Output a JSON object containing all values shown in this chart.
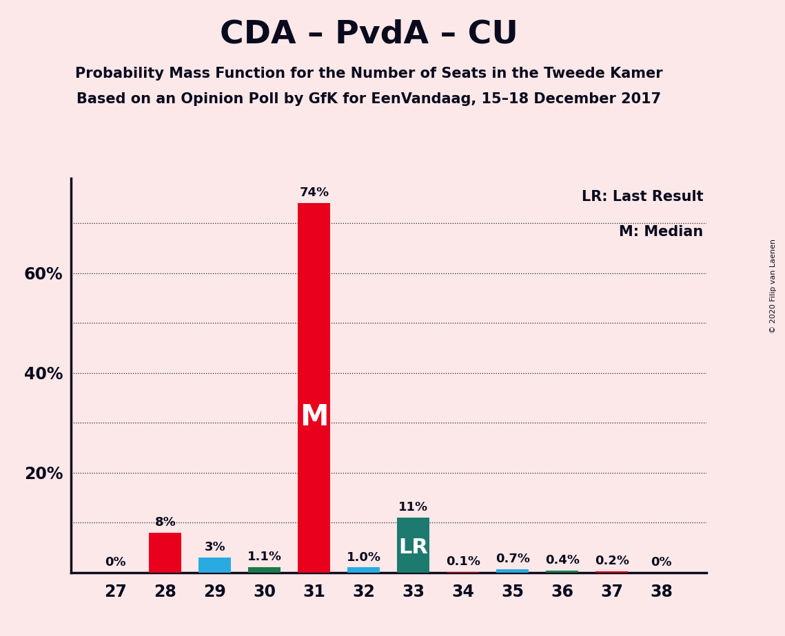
{
  "title": "CDA – PvdA – CU",
  "subtitle1": "Probability Mass Function for the Number of Seats in the Tweede Kamer",
  "subtitle2": "Based on an Opinion Poll by GfK for EenVandaag, 15–18 December 2017",
  "copyright": "© 2020 Filip van Laenen",
  "legend_lr": "LR: Last Result",
  "legend_m": "M: Median",
  "background_color": "#fce8e8",
  "categories": [
    27,
    28,
    29,
    30,
    31,
    32,
    33,
    34,
    35,
    36,
    37,
    38
  ],
  "values": [
    0.0,
    8.0,
    3.0,
    1.1,
    74.0,
    1.0,
    11.0,
    0.1,
    0.7,
    0.4,
    0.2,
    0.0
  ],
  "bar_colors": [
    "#e8001c",
    "#e8001c",
    "#29abe2",
    "#1a7a4a",
    "#e8001c",
    "#29abe2",
    "#1d7a6e",
    "#e8001c",
    "#29abe2",
    "#1a7a4a",
    "#e8001c",
    "#e8001c"
  ],
  "labels": [
    "0%",
    "8%",
    "3%",
    "1.1%",
    "74%",
    "1.0%",
    "11%",
    "0.1%",
    "0.7%",
    "0.4%",
    "0.2%",
    "0%"
  ],
  "median_idx": 4,
  "lr_idx": 6,
  "ylim_max": 79,
  "ytick_positions": [
    20,
    40,
    60
  ],
  "ytick_labels": [
    "20%",
    "40%",
    "60%"
  ],
  "grid_y": [
    10,
    20,
    30,
    40,
    50,
    60,
    70
  ],
  "text_color": "#0a0a1e"
}
